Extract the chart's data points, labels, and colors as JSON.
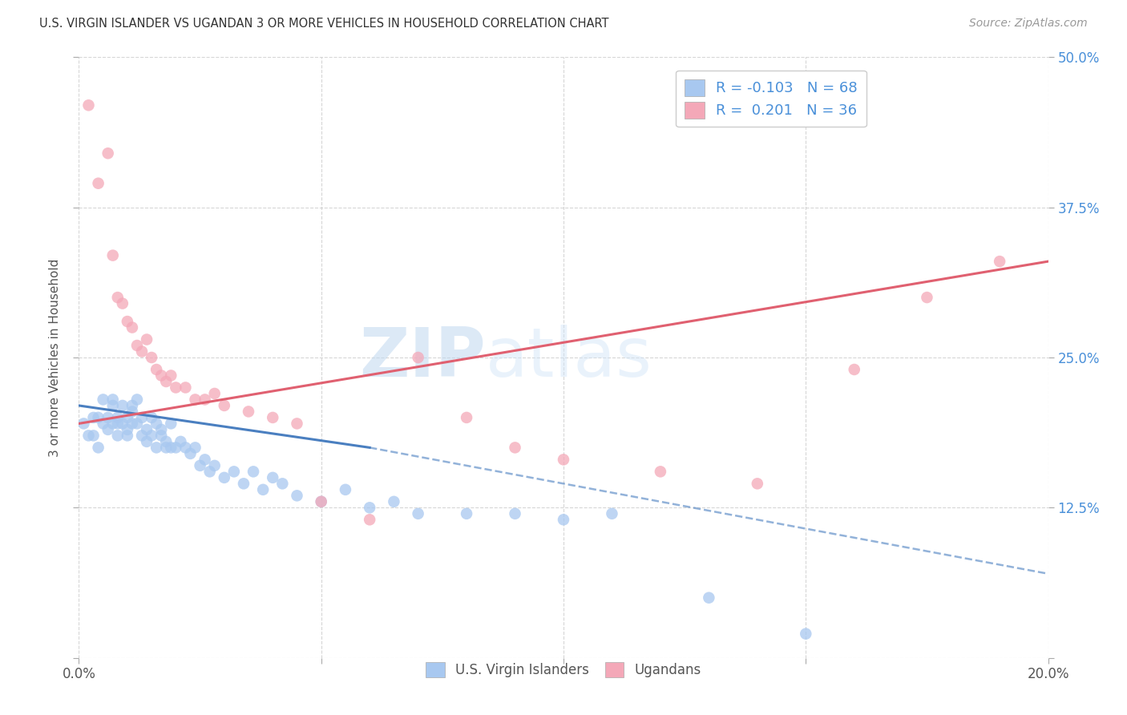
{
  "title": "U.S. VIRGIN ISLANDER VS UGANDAN 3 OR MORE VEHICLES IN HOUSEHOLD CORRELATION CHART",
  "source": "Source: ZipAtlas.com",
  "ylabel": "3 or more Vehicles in Household",
  "xmin": 0.0,
  "xmax": 0.2,
  "ymin": 0.0,
  "ymax": 0.5,
  "xticks": [
    0.0,
    0.05,
    0.1,
    0.15,
    0.2
  ],
  "xtick_labels": [
    "0.0%",
    "",
    "",
    "",
    "20.0%"
  ],
  "yticks": [
    0.0,
    0.125,
    0.25,
    0.375,
    0.5
  ],
  "right_ytick_labels": [
    "",
    "12.5%",
    "25.0%",
    "37.5%",
    "50.0%"
  ],
  "legend_labels": [
    "U.S. Virgin Islanders",
    "Ugandans"
  ],
  "blue_R": "-0.103",
  "blue_N": "68",
  "pink_R": "0.201",
  "pink_N": "36",
  "blue_color": "#a8c8f0",
  "pink_color": "#f4a8b8",
  "blue_line_color": "#4a7fc0",
  "pink_line_color": "#e06070",
  "watermark_zip": "ZIP",
  "watermark_atlas": "atlas",
  "blue_scatter_x": [
    0.001,
    0.002,
    0.003,
    0.003,
    0.004,
    0.004,
    0.005,
    0.005,
    0.006,
    0.006,
    0.007,
    0.007,
    0.007,
    0.008,
    0.008,
    0.008,
    0.009,
    0.009,
    0.01,
    0.01,
    0.01,
    0.011,
    0.011,
    0.011,
    0.012,
    0.012,
    0.013,
    0.013,
    0.014,
    0.014,
    0.015,
    0.015,
    0.016,
    0.016,
    0.017,
    0.017,
    0.018,
    0.018,
    0.019,
    0.019,
    0.02,
    0.021,
    0.022,
    0.023,
    0.024,
    0.025,
    0.026,
    0.027,
    0.028,
    0.03,
    0.032,
    0.034,
    0.036,
    0.038,
    0.04,
    0.042,
    0.045,
    0.05,
    0.055,
    0.06,
    0.065,
    0.07,
    0.08,
    0.09,
    0.1,
    0.11,
    0.13,
    0.15
  ],
  "blue_scatter_y": [
    0.195,
    0.185,
    0.2,
    0.185,
    0.175,
    0.2,
    0.215,
    0.195,
    0.19,
    0.2,
    0.21,
    0.195,
    0.215,
    0.185,
    0.2,
    0.195,
    0.21,
    0.195,
    0.2,
    0.185,
    0.19,
    0.205,
    0.195,
    0.21,
    0.195,
    0.215,
    0.2,
    0.185,
    0.18,
    0.19,
    0.185,
    0.2,
    0.195,
    0.175,
    0.19,
    0.185,
    0.175,
    0.18,
    0.175,
    0.195,
    0.175,
    0.18,
    0.175,
    0.17,
    0.175,
    0.16,
    0.165,
    0.155,
    0.16,
    0.15,
    0.155,
    0.145,
    0.155,
    0.14,
    0.15,
    0.145,
    0.135,
    0.13,
    0.14,
    0.125,
    0.13,
    0.12,
    0.12,
    0.12,
    0.115,
    0.12,
    0.05,
    0.02
  ],
  "pink_scatter_x": [
    0.002,
    0.004,
    0.006,
    0.007,
    0.008,
    0.009,
    0.01,
    0.011,
    0.012,
    0.013,
    0.014,
    0.015,
    0.016,
    0.017,
    0.018,
    0.019,
    0.02,
    0.022,
    0.024,
    0.026,
    0.028,
    0.03,
    0.035,
    0.04,
    0.045,
    0.05,
    0.06,
    0.07,
    0.08,
    0.09,
    0.1,
    0.12,
    0.14,
    0.16,
    0.175,
    0.19
  ],
  "pink_scatter_y": [
    0.46,
    0.395,
    0.42,
    0.335,
    0.3,
    0.295,
    0.28,
    0.275,
    0.26,
    0.255,
    0.265,
    0.25,
    0.24,
    0.235,
    0.23,
    0.235,
    0.225,
    0.225,
    0.215,
    0.215,
    0.22,
    0.21,
    0.205,
    0.2,
    0.195,
    0.13,
    0.115,
    0.25,
    0.2,
    0.175,
    0.165,
    0.155,
    0.145,
    0.24,
    0.3,
    0.33
  ],
  "blue_line_x0": 0.0,
  "blue_line_y0": 0.21,
  "blue_line_x_solid_end": 0.06,
  "blue_line_y_solid_end": 0.175,
  "blue_line_x1": 0.2,
  "blue_line_y1": 0.07,
  "pink_line_x0": 0.0,
  "pink_line_y0": 0.195,
  "pink_line_x1": 0.2,
  "pink_line_y1": 0.33
}
